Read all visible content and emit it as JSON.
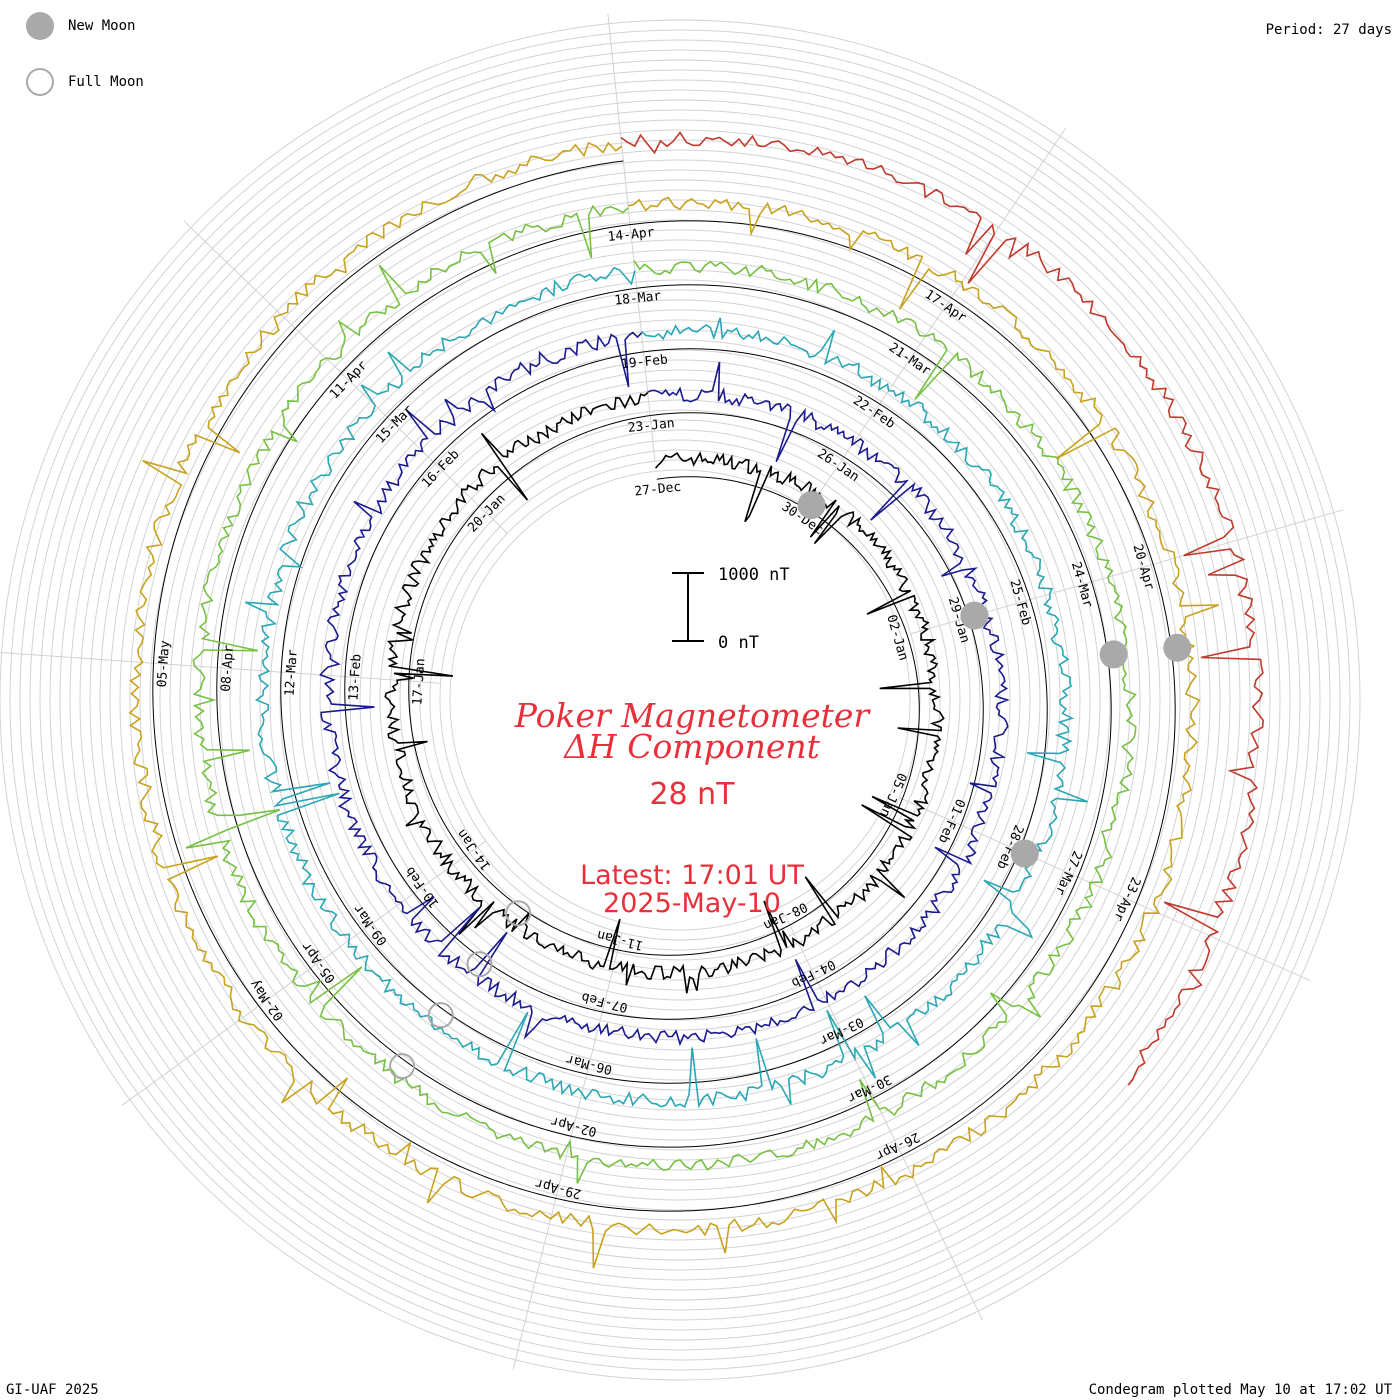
{
  "legend": {
    "new_moon": "New Moon",
    "full_moon": "Full Moon",
    "moon_color": "#a9a9a9"
  },
  "header": {
    "period": "Period: 27 days"
  },
  "footer": {
    "credit": "GI-UAF 2025",
    "plotted": "Condegram plotted May 10 at 17:02 UT"
  },
  "center": {
    "title_line1": "Poker Magnetometer",
    "title_line2": "ΔH Component",
    "value": "28 nT",
    "latest": "Latest: 17:01 UT",
    "date": "2025-May-10",
    "text_color": "#e8303a"
  },
  "scale_bar": {
    "top_label": "1000 nT",
    "bottom_label": "0 nT"
  },
  "chart_data": {
    "type": "line",
    "title": "Poker Magnetometer ΔH Component",
    "period_days": 27,
    "units": "nT",
    "series": [
      {
        "color": "#000000",
        "start_label": "27-Dec",
        "date_labels": [
          "27-Dec",
          "30-Dec",
          "02-Jan",
          "05-Jan",
          "08-Jan",
          "11-Jan",
          "14-Jan",
          "17-Jan",
          "20-Jan"
        ]
      },
      {
        "color": "#1a1a8f",
        "start_label": "23-Jan",
        "date_labels": [
          "23-Jan",
          "26-Jan",
          "29-Jan",
          "01-Feb",
          "04-Feb",
          "07-Feb",
          "10-Feb",
          "13-Feb",
          "16-Feb"
        ]
      },
      {
        "color": "#2aa7b5",
        "start_label": "19-Feb",
        "date_labels": [
          "19-Feb",
          "22-Feb",
          "25-Feb",
          "28-Feb",
          "03-Mar",
          "06-Mar",
          "09-Mar",
          "12-Mar",
          "15-Mar"
        ]
      },
      {
        "color": "#76c043",
        "start_label": "18-Mar",
        "date_labels": [
          "18-Mar",
          "21-Mar",
          "24-Mar",
          "27-Mar",
          "30-Mar",
          "02-Apr",
          "05-Apr",
          "08-Apr",
          "11-Apr"
        ]
      },
      {
        "color": "#c8a21e",
        "start_label": "14-Apr",
        "date_labels": [
          "14-Apr",
          "17-Apr",
          "20-Apr",
          "23-Apr",
          "26-Apr",
          "29-Apr",
          "02-May",
          "05-May"
        ]
      },
      {
        "color": "#c0392b",
        "start_label": "",
        "date_labels": []
      }
    ],
    "new_moons": [
      "30-Dec",
      "29-Jan",
      "28-Feb",
      "29-Mar",
      "27-Apr"
    ],
    "full_moons": [
      "13-Jan",
      "12-Feb",
      "14-Mar",
      "13-Apr"
    ],
    "grid": true
  }
}
